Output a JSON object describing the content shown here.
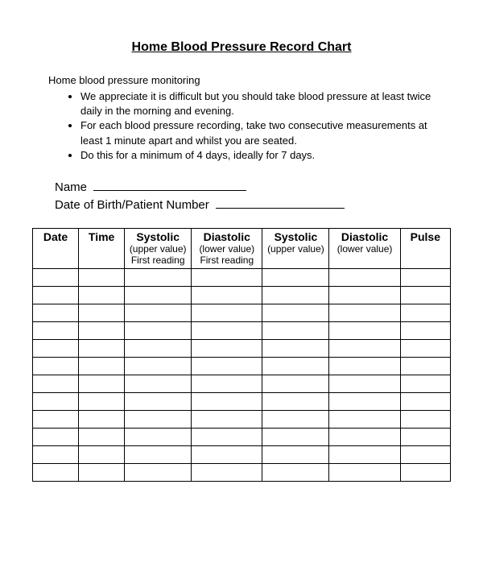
{
  "title": "Home Blood Pressure Record Chart",
  "intro": "Home blood pressure monitoring",
  "bullets": [
    "We appreciate it is difficult but you should take blood pressure at least twice daily in the morning and evening.",
    "For each blood pressure recording, take two consecutive measurements  at least 1 minute apart and whilst you are seated.",
    "Do this for a minimum of 4 days, ideally for 7 days."
  ],
  "fields": {
    "name_label": "Name",
    "dob_label": "Date of Birth/Patient Number"
  },
  "table": {
    "columns": [
      {
        "main": "Date",
        "sub": ""
      },
      {
        "main": "Time",
        "sub": ""
      },
      {
        "main": "Systolic",
        "sub": "(upper value) First reading"
      },
      {
        "main": "Diastolic",
        "sub": "(lower value) First reading"
      },
      {
        "main": "Systolic",
        "sub": "(upper value)"
      },
      {
        "main": "Diastolic",
        "sub": "(lower value)"
      },
      {
        "main": "Pulse",
        "sub": ""
      }
    ],
    "num_rows": 12,
    "num_cols": 7
  }
}
